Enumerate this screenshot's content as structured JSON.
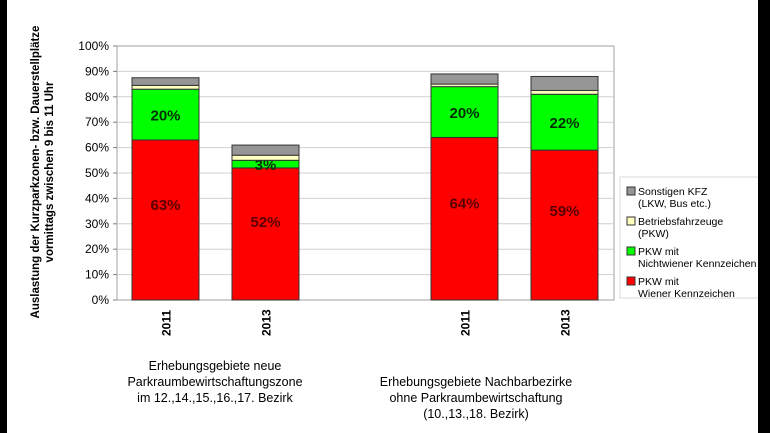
{
  "chart_data": {
    "type": "stacked-bar",
    "ylabel": "Auslastung der Kurzparkzonen- bzw. Dauerstellplätze vormittags zwischen 9 bis 11 Uhr",
    "ylabel_lines": [
      "Auslastung der Kurzparkzonen- bzw. Dauerstellplätze",
      "vormittags zwischen 9 bis 11 Uhr"
    ],
    "ylim": [
      0,
      100
    ],
    "yticks": [
      "0%",
      "10%",
      "20%",
      "30%",
      "40%",
      "50%",
      "60%",
      "70%",
      "80%",
      "90%",
      "100%"
    ],
    "grid": true,
    "legend_position": "right",
    "categories": [
      "2011",
      "2013",
      "2011",
      "2013"
    ],
    "groups": [
      {
        "label_lines": [
          "Erhebungsgebiete neue",
          "Parkraumbewirtschaftungszone",
          "im 12.,14.,15.,16.,17. Bezirk"
        ]
      },
      {
        "label_lines": [
          "Erhebungsgebiete Nachbarbezirke",
          "ohne Parkraumbewirtschaftung",
          "(10.,13.,18. Bezirk)"
        ]
      }
    ],
    "series": [
      {
        "name": "PKW mit Wiener Kennzeichen",
        "name_lines": [
          "PKW mit",
          "Wiener Kennzeichen"
        ],
        "color": "#ff0000",
        "values": [
          63,
          52,
          64,
          59
        ],
        "labels": [
          "63%",
          "52%",
          "64%",
          "59%"
        ]
      },
      {
        "name": "PKW mit Nichtwiener Kennzeichen",
        "name_lines": [
          "PKW mit",
          "Nichtwiener Kennzeichen"
        ],
        "color": "#00ff00",
        "values": [
          20,
          3,
          20,
          22
        ],
        "labels": [
          "20%",
          "3%",
          "20%",
          "22%"
        ]
      },
      {
        "name": "Betriebsfahrzeuge (PKW)",
        "name_lines": [
          "Betriebsfahrzeuge",
          "(PKW)"
        ],
        "color": "#ffffc0",
        "values": [
          1.5,
          2,
          1,
          1.5
        ],
        "labels": [
          "",
          "",
          "",
          ""
        ]
      },
      {
        "name": "Sonstigen KFZ (LKW, Bus etc.)",
        "name_lines": [
          "Sonstigen KFZ",
          "(LKW, Bus etc.)"
        ],
        "color": "#969696",
        "values": [
          3,
          4,
          4,
          5.5
        ],
        "labels": [
          "",
          "",
          "",
          ""
        ]
      }
    ]
  }
}
